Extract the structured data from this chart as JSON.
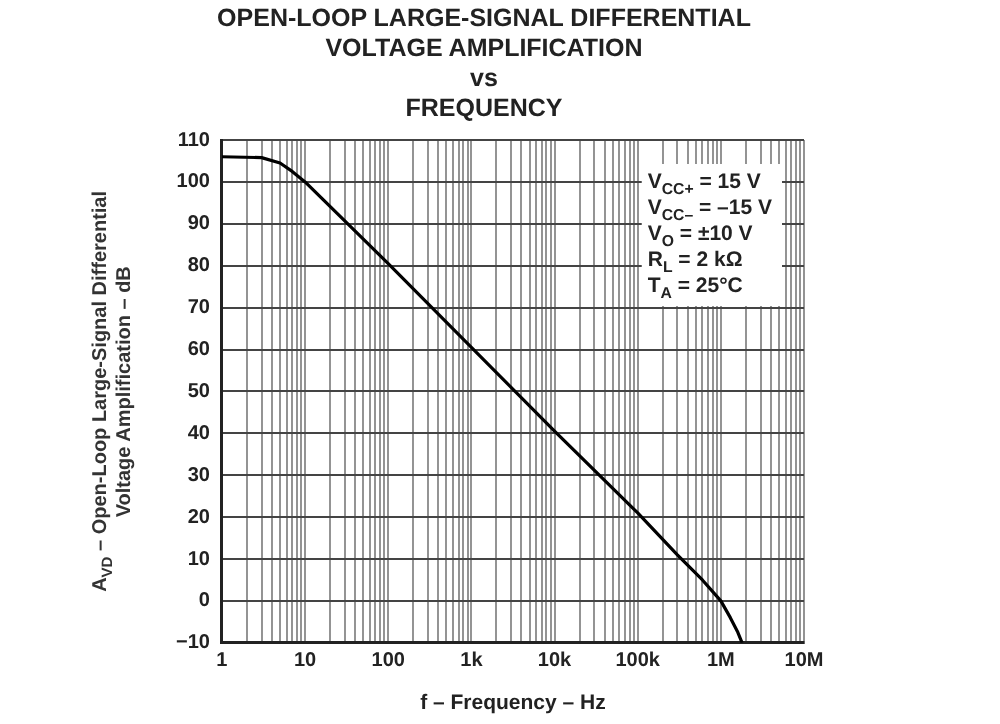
{
  "chart_data": {
    "type": "line",
    "title": "OPEN-LOOP LARGE-SIGNAL DIFFERENTIAL\nVOLTAGE AMPLIFICATION\nvs\nFREQUENCY",
    "xlabel": "f – Frequency – Hz",
    "ylabel": "A$_{VD}$ – Open-Loop Large-Signal Differential\nVoltage Amplification – dB",
    "annotations": [
      "V$_{CC+}$ = 15 V",
      "V$_{CC–}$ = –15 V",
      "V$_{O}$ = ±10 V",
      "R$_{L}$ = 2 kΩ",
      "T$_{A}$ = 25°C"
    ],
    "x": [
      1,
      3,
      5,
      7,
      10,
      100,
      1000,
      10000,
      100000,
      300000,
      600000,
      1000000,
      1300000,
      1600000,
      1800000
    ],
    "series": [
      {
        "color": "#000000",
        "values": [
          106,
          105.8,
          104.5,
          102.5,
          100,
          80.5,
          60.5,
          40.5,
          21,
          11,
          5,
          0,
          -4,
          -7.5,
          -10
        ]
      }
    ],
    "log": "x",
    "xlim": [
      1,
      10000000
    ],
    "ylim": [
      -10,
      110
    ],
    "xticks": [
      1,
      {
        "value": 2,
        "label": null
      },
      {
        "value": 3,
        "label": null
      },
      {
        "value": 4,
        "label": null
      },
      {
        "value": 5,
        "label": null
      },
      {
        "value": 6,
        "label": null
      },
      {
        "value": 7,
        "label": null
      },
      {
        "value": 8,
        "label": null
      },
      {
        "value": 9,
        "label": null
      },
      10,
      {
        "value": 20,
        "label": null
      },
      {
        "value": 30,
        "label": null
      },
      {
        "value": 40,
        "label": null
      },
      {
        "value": 50,
        "label": null
      },
      {
        "value": 60,
        "label": null
      },
      {
        "value": 70,
        "label": null
      },
      {
        "value": 80,
        "label": null
      },
      {
        "value": 90,
        "label": null
      },
      100,
      {
        "value": 200,
        "label": null
      },
      {
        "value": 300,
        "label": null
      },
      {
        "value": 400,
        "label": null
      },
      {
        "value": 500,
        "label": null
      },
      {
        "value": 600,
        "label": null
      },
      {
        "value": 700,
        "label": null
      },
      {
        "value": 800,
        "label": null
      },
      {
        "value": 900,
        "label": null
      },
      {
        "value": 1000,
        "label": "1k"
      },
      {
        "value": 2000,
        "label": null
      },
      {
        "value": 3000,
        "label": null
      },
      {
        "value": 4000,
        "label": null
      },
      {
        "value": 5000,
        "label": null
      },
      {
        "value": 6000,
        "label": null
      },
      {
        "value": 7000,
        "label": null
      },
      {
        "value": 8000,
        "label": null
      },
      {
        "value": 9000,
        "label": null
      },
      {
        "value": 10000,
        "label": "10k"
      },
      {
        "value": 20000,
        "label": null
      },
      {
        "value": 30000,
        "label": null
      },
      {
        "value": 40000,
        "label": null
      },
      {
        "value": 50000,
        "label": null
      },
      {
        "value": 60000,
        "label": null
      },
      {
        "value": 70000,
        "label": null
      },
      {
        "value": 80000,
        "label": null
      },
      {
        "value": 90000,
        "label": null
      },
      {
        "value": 100000,
        "label": "100k"
      },
      {
        "value": 200000,
        "label": null
      },
      {
        "value": 300000,
        "label": null
      },
      {
        "value": 400000,
        "label": null
      },
      {
        "value": 500000,
        "label": null
      },
      {
        "value": 600000,
        "label": null
      },
      {
        "value": 700000,
        "label": null
      },
      {
        "value": 800000,
        "label": null
      },
      {
        "value": 900000,
        "label": null
      },
      {
        "value": 1000000,
        "label": "1M"
      },
      {
        "value": 2000000,
        "label": null
      },
      {
        "value": 3000000,
        "label": null
      },
      {
        "value": 4000000,
        "label": null
      },
      {
        "value": 5000000,
        "label": null
      },
      {
        "value": 6000000,
        "label": null
      },
      {
        "value": 7000000,
        "label": null
      },
      {
        "value": 8000000,
        "label": null
      },
      {
        "value": 9000000,
        "label": null
      },
      {
        "value": 10000000,
        "label": "10M"
      }
    ],
    "yticks": [
      -10,
      0,
      10,
      20,
      30,
      40,
      50,
      60,
      70,
      80,
      90,
      100,
      110
    ],
    "grid": true,
    "legend": false,
    "marker": "none",
    "line_style": "solid"
  }
}
